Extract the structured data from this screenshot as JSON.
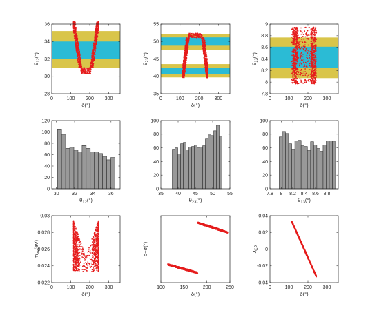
{
  "colors": {
    "band_outer": "#d9c54a",
    "band_inner": "#2bbbd5",
    "points": "#e51c1c",
    "bars": "#999999"
  },
  "chart_data": [
    {
      "type": "scatter",
      "panel": "row1-col1",
      "xlabel": "δ(°)",
      "ylabel": "θ12(°)",
      "xlim": [
        0,
        360
      ],
      "ylim": [
        28,
        36
      ],
      "xticks": [
        "0",
        "100",
        "200",
        "300"
      ],
      "yticks": [
        "28",
        "30",
        "32",
        "34",
        "36"
      ],
      "bands": [
        {
          "range": [
            31,
            35.2
          ],
          "level": "outer"
        },
        {
          "range": [
            32,
            34
          ],
          "level": "inner"
        }
      ],
      "shape": "v",
      "x_range": [
        115,
        245
      ],
      "y_min": 30.3,
      "y_max": 36.3,
      "x_center": 180,
      "half_width_bottom": 25,
      "points": 1000
    },
    {
      "type": "scatter",
      "panel": "row1-col2",
      "xlabel": "δ(°)",
      "ylabel": "θ23(°)",
      "xlim": [
        0,
        360
      ],
      "ylim": [
        35,
        55
      ],
      "xticks": [
        "0",
        "100",
        "200",
        "300"
      ],
      "yticks": [
        "35",
        "40",
        "45",
        "50",
        "55"
      ],
      "bands": [
        {
          "range": [
            39.7,
            43.5
          ],
          "level": "outer"
        },
        {
          "range": [
            40.7,
            42.4
          ],
          "level": "inner"
        },
        {
          "range": [
            47.6,
            52.1
          ],
          "level": "outer"
        },
        {
          "range": [
            48.8,
            51.2
          ],
          "level": "inner"
        }
      ],
      "shape": "n",
      "x_range": [
        115,
        245
      ],
      "y_min": 39.6,
      "y_max": 52.4,
      "x_center": 180,
      "half_width_top": 37,
      "points": 1000
    },
    {
      "type": "scatter",
      "panel": "row1-col3",
      "xlabel": "δ(°)",
      "ylabel": "θ13(°)",
      "xlim": [
        0,
        360
      ],
      "ylim": [
        7.8,
        9.0
      ],
      "xticks": [
        "0",
        "100",
        "200",
        "300"
      ],
      "yticks": [
        "7.8",
        "8",
        "8.2",
        "8.4",
        "8.6",
        "8.8",
        "9"
      ],
      "bands": [
        {
          "range": [
            8.07,
            8.77
          ],
          "level": "outer"
        },
        {
          "range": [
            8.25,
            8.61
          ],
          "level": "inner"
        }
      ],
      "shape": "block",
      "x_range": [
        115,
        245
      ],
      "y_min": 7.97,
      "y_max": 8.95,
      "points": 1100
    },
    {
      "type": "bar",
      "panel": "row2-col1",
      "xlabel": "θ12(°)",
      "xlim": [
        29.5,
        37
      ],
      "ylim": [
        0,
        120
      ],
      "xticks": [
        "30",
        "32",
        "34",
        "36"
      ],
      "yticks": [
        "0",
        "20",
        "40",
        "60",
        "80",
        "100",
        "120"
      ],
      "x": [
        30.35,
        30.8,
        31.25,
        31.7,
        32.15,
        32.6,
        33.05,
        33.5,
        33.95,
        34.4,
        34.85,
        35.3,
        35.75,
        36.2
      ],
      "values": [
        105,
        95,
        71,
        73,
        68,
        65,
        76,
        71,
        65,
        65,
        62,
        57,
        51,
        55
      ]
    },
    {
      "type": "bar",
      "panel": "row2-col2",
      "xlabel": "θ23(°)",
      "xlim": [
        35,
        55
      ],
      "ylim": [
        0,
        100
      ],
      "xticks": [
        "35",
        "40",
        "45",
        "50",
        "55"
      ],
      "yticks": [
        "0",
        "20",
        "40",
        "60",
        "80",
        "100"
      ],
      "x": [
        38.7,
        39.5,
        40.3,
        41.1,
        41.9,
        42.7,
        43.5,
        44.3,
        45.1,
        45.9,
        46.7,
        47.5,
        48.3,
        49.1,
        49.9,
        50.7,
        51.5,
        52.3
      ],
      "values": [
        58,
        60,
        51,
        66,
        68,
        57,
        61,
        62,
        64,
        60,
        61,
        63,
        74,
        79,
        78,
        85,
        93,
        77
      ]
    },
    {
      "type": "bar",
      "panel": "row2-col3",
      "xlabel": "θ13(°)",
      "xlim": [
        7.8,
        9.0
      ],
      "ylim": [
        0,
        100
      ],
      "xticks": [
        "7.8",
        "8",
        "8.2",
        "8.4",
        "8.6",
        "8.8"
      ],
      "yticks": [
        "0",
        "20",
        "40",
        "60",
        "80",
        "100"
      ],
      "x": [
        7.99,
        8.045,
        8.1,
        8.155,
        8.21,
        8.265,
        8.32,
        8.375,
        8.43,
        8.485,
        8.54,
        8.595,
        8.65,
        8.705,
        8.76,
        8.815,
        8.87,
        8.925
      ],
      "values": [
        76,
        84,
        81,
        66,
        58,
        70,
        71,
        63,
        62,
        56,
        69,
        64,
        59,
        55,
        64,
        70,
        70,
        69
      ]
    },
    {
      "type": "scatter",
      "panel": "row3-col1",
      "xlabel": "δ(°)",
      "ylabel": "mee(eV)",
      "xlim": [
        0,
        360
      ],
      "ylim": [
        0.022,
        0.03
      ],
      "xticks": [
        "0",
        "100",
        "200",
        "300"
      ],
      "yticks": [
        "0.022",
        "0.024",
        "0.026",
        "0.028",
        "0.03"
      ],
      "shape": "v",
      "x_range": [
        115,
        245
      ],
      "y_min": 0.0233,
      "y_max": 0.0294,
      "x_center": 180,
      "half_width_bottom": 45,
      "points": 1000
    },
    {
      "type": "scatter",
      "panel": "row3-col2",
      "xlabel": "δ(°)",
      "ylabel": "ρ+σ(°)",
      "xlim": [
        100,
        250
      ],
      "ylim": [
        -120,
        120
      ],
      "xticks": [
        "100",
        "150",
        "200",
        "250"
      ],
      "yticks": [],
      "shape": "lines",
      "segments": [
        {
          "x": [
            115,
            180
          ],
          "y": [
            -55,
            -85
          ],
          "half_thick": 3.5
        },
        {
          "x": [
            180,
            245
          ],
          "y": [
            95,
            60
          ],
          "half_thick": 3.5
        }
      ],
      "points": 1000
    },
    {
      "type": "scatter",
      "panel": "row3-col3",
      "xlabel": "δ(°)",
      "ylabel": "JCP",
      "xlim": [
        0,
        360
      ],
      "ylim": [
        -0.04,
        0.04
      ],
      "xticks": [
        "0",
        "100",
        "200",
        "300"
      ],
      "yticks": [
        "-0.04",
        "-0.02",
        "0",
        "0.02",
        "0.04"
      ],
      "shape": "lines",
      "segments": [
        {
          "x": [
            115,
            245
          ],
          "y": [
            0.033,
            -0.033
          ],
          "half_thick": 0.0012
        }
      ],
      "points": 1000
    }
  ]
}
